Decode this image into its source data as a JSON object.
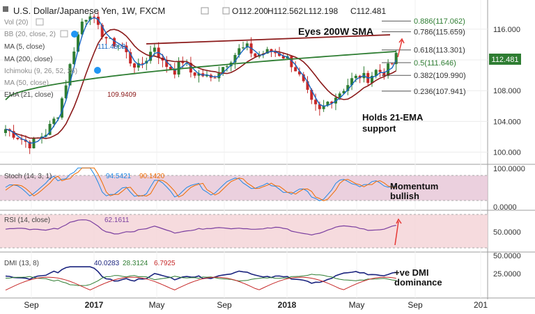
{
  "header": {
    "title": "U.S. Dollar/Japanese Yen, 1W, FXCM",
    "ohlc": {
      "open": "O112.200",
      "high": "H112.562",
      "low": "L112.198",
      "close": "C112.481"
    },
    "current_price": "112.481"
  },
  "indicator_legend": {
    "vol": "Vol (20)",
    "bb": "BB (20, close, 2)",
    "ma5": "MA (5, close)",
    "ma200": "MA (200, close)",
    "ichimoku": "Ichimoku (9, 26, 52, 26)",
    "ma50": "MA (50, close)",
    "ema21": "EMA (21, close)",
    "ma5_value": "111.4802",
    "ema21_value": "109.9409"
  },
  "annotations": {
    "eyes_200w": "Eyes 200W SMA",
    "holds_21ema": "Holds 21-EMA support",
    "momentum_bullish": "Momentum bullish",
    "dmi_dominance": "+ve DMI dominance"
  },
  "fib_levels": [
    {
      "label": "0.886(117.062)",
      "price": 117.062,
      "color": "#2e7d32"
    },
    {
      "label": "0.786(115.659)",
      "price": 115.659,
      "color": "#333333"
    },
    {
      "label": "0.618(113.301)",
      "price": 113.301,
      "color": "#333333"
    },
    {
      "label": "0.5(111.646)",
      "price": 111.646,
      "color": "#2e7d32"
    },
    {
      "label": "0.382(109.990)",
      "price": 109.99,
      "color": "#333333"
    },
    {
      "label": "0.236(107.941)",
      "price": 107.941,
      "color": "#333333"
    }
  ],
  "panels": {
    "stoch": {
      "label": "Stoch (14, 3, 1)",
      "k_value": "94.5421",
      "d_value": "90.1420",
      "ticks": [
        "100.0000",
        "0.0000"
      ]
    },
    "rsi": {
      "label": "RSI (14, close)",
      "value": "62.1611",
      "ticks": [
        "50.0000"
      ]
    },
    "dmi": {
      "label": "DMI (13, 8)",
      "plus_di": "40.0283",
      "minus_di": "28.3124",
      "adx": "6.7925",
      "ticks": [
        "50.0000",
        "25.0000"
      ]
    }
  },
  "x_axis_labels": [
    "Sep",
    "2017",
    "May",
    "Sep",
    "2018",
    "May",
    "Sep",
    "201"
  ],
  "colors": {
    "up_candle": "#2e7d32",
    "down_candle": "#c62828",
    "ma5": "#1565c0",
    "ema21": "#8b1a1a",
    "ma200": "#2e7d32",
    "trendline": "#8b1a1a",
    "stoch_band": "#e6c4d6",
    "rsi_band": "#f5d5d8",
    "price_tag": "#2e7d32"
  },
  "chart_data": [
    {
      "type": "candlestick",
      "title": "U.S. Dollar/Japanese Yen, 1W, FXCM",
      "y_axis": {
        "ticks": [
          100.0,
          104.0,
          108.0,
          112.0,
          116.0
        ],
        "ylim": [
          98.5,
          119.8
        ]
      },
      "x_labels": [
        "Sep",
        "2017",
        "May",
        "Sep",
        "2018",
        "May",
        "Sep",
        "201"
      ],
      "grid": true,
      "series": [
        {
          "name": "MA (5, close)",
          "last_value": 111.4802
        },
        {
          "name": "EMA (21, close)",
          "last_value": 109.9409
        },
        {
          "name": "MA (200, close)"
        }
      ],
      "price_approx_path": [
        [
          0,
          103
        ],
        [
          6,
          101
        ],
        [
          10,
          102.5
        ],
        [
          13,
          105
        ],
        [
          15,
          109
        ],
        [
          17,
          113.5
        ],
        [
          19,
          117
        ],
        [
          21,
          118.2
        ],
        [
          23,
          116
        ],
        [
          26,
          114.3
        ],
        [
          29,
          113.8
        ],
        [
          31,
          111.8
        ],
        [
          33,
          111
        ],
        [
          35,
          112.2
        ],
        [
          37,
          113.8
        ],
        [
          39,
          111.6
        ],
        [
          42,
          110.6
        ],
        [
          44,
          111.9
        ],
        [
          46,
          110.4
        ],
        [
          49,
          110
        ],
        [
          51,
          109.5
        ],
        [
          53,
          110.6
        ],
        [
          56,
          112.2
        ],
        [
          58,
          113.3
        ],
        [
          60,
          113.6
        ],
        [
          62,
          112.5
        ],
        [
          64,
          112.9
        ],
        [
          66,
          113.1
        ],
        [
          68,
          112.8
        ],
        [
          70,
          112.2
        ],
        [
          72,
          110.8
        ],
        [
          74,
          108.8
        ],
        [
          76,
          106.3
        ],
        [
          78,
          105.3
        ],
        [
          80,
          106.5
        ],
        [
          82,
          107.3
        ],
        [
          84,
          108.3
        ],
        [
          86,
          109.4
        ],
        [
          88,
          109.9
        ],
        [
          90,
          109.6
        ],
        [
          92,
          110.6
        ],
        [
          94,
          110.4
        ],
        [
          96,
          111.5
        ],
        [
          97,
          112.48
        ]
      ],
      "bars_span": "Jul 2016 – Jul 2018 (weekly)"
    },
    {
      "type": "line",
      "name": "Stoch (14, 3, 1)",
      "values_last": {
        "k": 94.5421,
        "d": 90.142
      },
      "ylim": [
        0,
        100
      ]
    },
    {
      "type": "line",
      "name": "RSI (14, close)",
      "values_last": {
        "rsi": 62.1611
      }
    },
    {
      "type": "line",
      "name": "DMI (13, 8)",
      "values_last": {
        "plus_di": 40.0283,
        "minus_di": 28.3124,
        "adx": 6.7925
      }
    }
  ]
}
